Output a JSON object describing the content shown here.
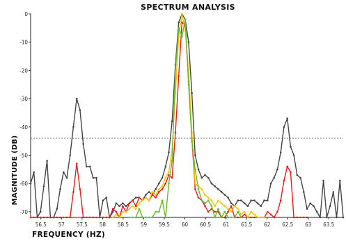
{
  "chart_data": {
    "type": "line",
    "title": "SPECTRUM ANALYSIS",
    "xlabel": "FREQUENCY (HZ)",
    "ylabel": "MAGNITUDE (DB)",
    "xlim": [
      56.25,
      63.85
    ],
    "ylim": [
      -72,
      0
    ],
    "x_ticks": [
      "56.5",
      "57",
      "57.5",
      "58",
      "58.5",
      "59",
      "59.5",
      "60",
      "60.5",
      "61",
      "61.5",
      "62",
      "62.5",
      "63",
      "63.5"
    ],
    "y_ticks": [
      "0",
      "-10",
      "-20",
      "-30",
      "-40",
      "-50",
      "-60",
      "-70"
    ],
    "reference_line": {
      "y": -44,
      "style": "dashed"
    },
    "grid": false,
    "series": [
      {
        "color": "#444444",
        "x": [
          56.25,
          56.33,
          56.41,
          56.49,
          56.57,
          56.65,
          56.73,
          56.81,
          56.89,
          56.97,
          57.05,
          57.13,
          57.21,
          57.29,
          57.37,
          57.45,
          57.53,
          57.61,
          57.69,
          57.77,
          57.85,
          57.93,
          58.01,
          58.09,
          58.17,
          58.25,
          58.33,
          58.41,
          58.49,
          58.57,
          58.65,
          58.73,
          58.81,
          58.89,
          58.97,
          59.05,
          59.13,
          59.21,
          59.29,
          59.37,
          59.45,
          59.53,
          59.61,
          59.69,
          59.77,
          59.85,
          59.93,
          60.01,
          60.09,
          60.17,
          60.25,
          60.33,
          60.41,
          60.49,
          60.57,
          60.65,
          60.73,
          60.81,
          60.89,
          60.97,
          61.05,
          61.13,
          61.21,
          61.29,
          61.37,
          61.45,
          61.53,
          61.61,
          61.69,
          61.77,
          61.85,
          61.93,
          62.01,
          62.09,
          62.17,
          62.25,
          62.33,
          62.41,
          62.49,
          62.57,
          62.65,
          62.73,
          62.81,
          62.89,
          62.97,
          63.05,
          63.13,
          63.21,
          63.29,
          63.37,
          63.45,
          63.53,
          63.61,
          63.69,
          63.77,
          63.85
        ],
        "values": [
          -60,
          -56,
          -72,
          -70,
          -61,
          -52,
          -72,
          -72,
          -69,
          -62,
          -56,
          -58,
          -50,
          -40,
          -30,
          -34,
          -46,
          -54,
          -54,
          -58,
          -58,
          -72,
          -66,
          -65,
          -72,
          -70,
          -67,
          -68,
          -67,
          -68,
          -67,
          -66,
          -65,
          -65,
          -66,
          -64,
          -63,
          -64,
          -62,
          -60,
          -58,
          -54,
          -49,
          -38,
          -18,
          -3,
          0,
          -2,
          -10,
          -28,
          -50,
          -55,
          -58,
          -57,
          -58,
          -60,
          -61,
          -62,
          -63,
          -64,
          -65,
          -67,
          -68,
          -66,
          -66,
          -67,
          -68,
          -66,
          -66,
          -67,
          -68,
          -66,
          -66,
          -60,
          -58,
          -55,
          -49,
          -40,
          -37,
          -47,
          -50,
          -57,
          -58,
          -63,
          -69,
          -67,
          -68,
          -70,
          -72,
          -59,
          -72,
          -68,
          -63,
          -72,
          -59,
          -72
        ]
      },
      {
        "color": "#e01c1c",
        "x": [
          56.25,
          56.33,
          56.41,
          56.49,
          56.57,
          56.65,
          56.73,
          56.81,
          56.89,
          56.97,
          57.05,
          57.13,
          57.21,
          57.29,
          57.37,
          57.45,
          57.53,
          57.61,
          57.69,
          57.77,
          57.85,
          57.93,
          58.01,
          58.09,
          58.17,
          58.25,
          58.33,
          58.41,
          58.49,
          58.57,
          58.65,
          58.73,
          58.81,
          58.89,
          58.97,
          59.05,
          59.13,
          59.21,
          59.29,
          59.37,
          59.45,
          59.53,
          59.61,
          59.69,
          59.77,
          59.85,
          59.93,
          60.01,
          60.09,
          60.17,
          60.25,
          60.33,
          60.41,
          60.49,
          60.57,
          60.65,
          60.73,
          60.81,
          60.89,
          60.97,
          61.05,
          61.13,
          61.21,
          61.29,
          61.37,
          61.45,
          61.53,
          61.61,
          61.69,
          61.77,
          61.85,
          61.93,
          62.01,
          62.09,
          62.17,
          62.25,
          62.33,
          62.41,
          62.49,
          62.57,
          62.65,
          62.73,
          62.81,
          62.89,
          62.97
        ],
        "values": [
          -72,
          -72,
          -72,
          -72,
          -72,
          -72,
          -72,
          -72,
          -72,
          -72,
          -72,
          -72,
          -72,
          -63,
          -53,
          -62,
          -72,
          -72,
          -72,
          -72,
          -72,
          -72,
          -72,
          -72,
          -72,
          -69,
          -70,
          -72,
          -68,
          -70,
          -67,
          -66,
          -68,
          -65,
          -66,
          -65,
          -66,
          -64,
          -65,
          -63,
          -62,
          -60,
          -57,
          -58,
          -42,
          -22,
          -3,
          -4,
          -24,
          -44,
          -62,
          -65,
          -66,
          -68,
          -70,
          -69,
          -70,
          -70,
          -72,
          -72,
          -70,
          -68,
          -72,
          -72,
          -72,
          -71,
          -72,
          -72,
          -72,
          -72,
          -72,
          -72,
          -70,
          -71,
          -72,
          -70,
          -66,
          -59,
          -54,
          -56,
          -72,
          -72,
          -72,
          -72,
          -72
        ]
      },
      {
        "color": "#f5c400",
        "x": [
          58.25,
          58.33,
          58.41,
          58.49,
          58.57,
          58.65,
          58.73,
          58.81,
          58.89,
          58.97,
          59.05,
          59.13,
          59.21,
          59.29,
          59.37,
          59.45,
          59.53,
          59.61,
          59.69,
          59.77,
          59.85,
          59.93,
          60.01,
          60.09,
          60.17,
          60.25,
          60.33,
          60.41,
          60.49,
          60.57,
          60.65,
          60.73,
          60.81,
          60.89,
          60.97,
          61.05,
          61.13,
          61.21,
          61.29,
          61.37,
          61.45,
          61.53,
          61.61,
          61.69,
          61.77,
          61.85,
          61.93
        ],
        "values": [
          -72,
          -71,
          -72,
          -70,
          -70,
          -69,
          -68,
          -69,
          -67,
          -66,
          -65,
          -66,
          -63,
          -64,
          -62,
          -61,
          -58,
          -56,
          -48,
          -28,
          -8,
          0,
          -6,
          -20,
          -42,
          -60,
          -61,
          -62,
          -64,
          -65,
          -66,
          -68,
          -66,
          -67,
          -68,
          -69,
          -70,
          -68,
          -69,
          -71,
          -70,
          -72,
          -70,
          -71,
          -72,
          -72,
          -72
        ]
      },
      {
        "color": "#6ab82a",
        "x": [
          58.65,
          58.73,
          58.81,
          58.89,
          58.97,
          59.05,
          59.13,
          59.21,
          59.29,
          59.37,
          59.45,
          59.53,
          59.61,
          59.69,
          59.77,
          59.85,
          59.93,
          60.01,
          60.09,
          60.17,
          60.25,
          60.33,
          60.41,
          60.49,
          60.57,
          60.65,
          60.73,
          60.81,
          60.89,
          60.97,
          61.05,
          61.13,
          61.21,
          61.29,
          61.37
        ],
        "values": [
          -72,
          -72,
          -72,
          -69,
          -72,
          -72,
          -72,
          -72,
          -70,
          -70,
          -66,
          -72,
          -60,
          -52,
          -20,
          -5,
          -8,
          -2,
          -25,
          -45,
          -55,
          -62,
          -66,
          -67,
          -66,
          -68,
          -72,
          -69,
          -72,
          -70,
          -72,
          -72,
          -72,
          -70,
          -72
        ]
      }
    ]
  }
}
